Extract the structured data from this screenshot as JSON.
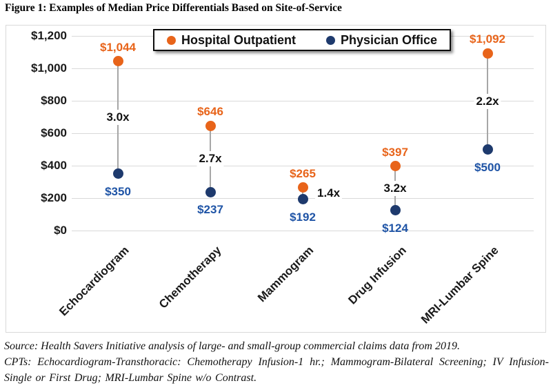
{
  "title": "Figure 1: Examples of Median Price Differentials Based on Site-of-Service",
  "legend": {
    "items": [
      {
        "label": "Hospital Outpatient",
        "color": "#E8641A"
      },
      {
        "label": "Physician Office",
        "color": "#1E3A6D"
      }
    ]
  },
  "chart_data": {
    "type": "scatter",
    "subtype": "dumbbell-dot-plot",
    "title": "Figure 1: Examples of Median Price Differentials Based on Site-of-Service",
    "categories": [
      "Echocardiogram",
      "Chemotherapy",
      "Mammogram",
      "Drug Infusion",
      "MRI-Lumbar Spine"
    ],
    "series": [
      {
        "name": "Hospital Outpatient",
        "color": "#E8641A",
        "label_color": "#E8641A",
        "values": [
          1044,
          646,
          265,
          397,
          1092
        ],
        "point_labels": [
          "$1,044",
          "$646",
          "$265",
          "$397",
          "$1,092"
        ]
      },
      {
        "name": "Physician Office",
        "color": "#1E3A6D",
        "label_color": "#1F54A6",
        "values": [
          350,
          237,
          192,
          124,
          500
        ],
        "point_labels": [
          "$350",
          "$237",
          "$192",
          "$124",
          "$500"
        ]
      }
    ],
    "ratio_labels": [
      "3.0x",
      "2.7x",
      "1.4x",
      "3.2x",
      "2.2x"
    ],
    "xlabel": "",
    "ylabel": "",
    "ylim": [
      0,
      1200
    ],
    "ytick_step": 200,
    "ytick_labels": [
      "$0",
      "$200",
      "$400",
      "$600",
      "$800",
      "$1,000",
      "$1,200"
    ],
    "grid": true,
    "gridline_color": "#D9D9D9",
    "connector_color": "#A6A6A6",
    "legend_position": "top-center"
  },
  "footer": {
    "source_line": "Source: Health Savers Initiative analysis of large- and small-group commercial claims data from 2019.",
    "cpts_line": "CPTs: Echocardiogram-Transthoracic: Chemotherapy Infusion-1 hr.; Mammogram-Bilateral Screening; IV Infusion-Single or First Drug; MRI-Lumbar Spine w/o Contrast."
  }
}
